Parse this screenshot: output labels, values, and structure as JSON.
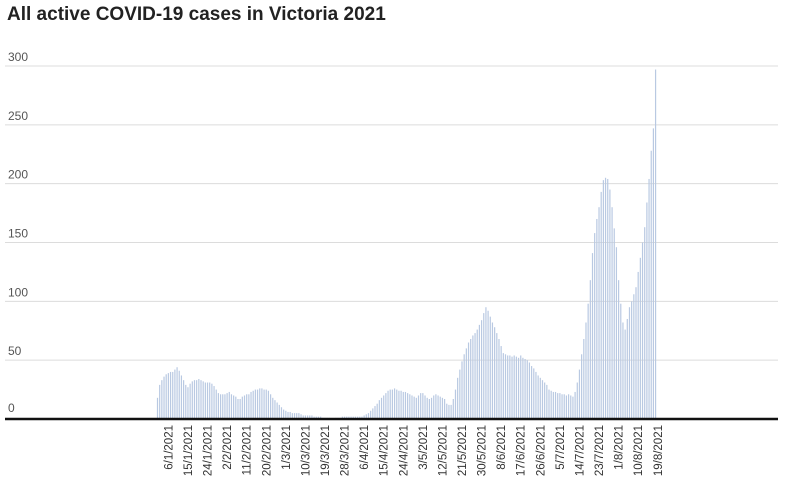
{
  "chart_data": {
    "type": "bar",
    "title": "All active COVID-19 cases in Victoria 2021",
    "xlabel": "",
    "ylabel": "",
    "ylim": [
      0,
      300
    ],
    "yticks": [
      0,
      50,
      100,
      150,
      200,
      250,
      300
    ],
    "grid": true,
    "legend": "none",
    "bar_color": "#b9c9e2",
    "baseline_color": "#111111",
    "gridline_color": "#dcdcdc",
    "start_date": "2021-01-01",
    "x_tick_labels": [
      "6/1/2021",
      "15/1/2021",
      "24/1/2021",
      "2/2/2021",
      "11/2/2021",
      "20/2/2021",
      "1/3/2021",
      "10/3/2021",
      "19/3/2021",
      "28/3/2021",
      "6/4/2021",
      "15/4/2021",
      "24/4/2021",
      "3/5/2021",
      "12/5/2021",
      "21/5/2021",
      "30/5/2021",
      "8/6/2021",
      "17/6/2021",
      "26/6/2021",
      "5/7/2021",
      "14/7/2021",
      "23/7/2021",
      "1/8/2021",
      "10/8/2021",
      "19/8/2021"
    ],
    "values": [
      18,
      29,
      33,
      36,
      38,
      39,
      40,
      40,
      42,
      44,
      41,
      37,
      33,
      29,
      27,
      30,
      32,
      33,
      33,
      34,
      33,
      32,
      31,
      31,
      31,
      30,
      28,
      25,
      22,
      21,
      21,
      21,
      22,
      23,
      21,
      20,
      19,
      17,
      17,
      19,
      20,
      21,
      21,
      23,
      24,
      25,
      25,
      26,
      26,
      25,
      25,
      24,
      21,
      18,
      16,
      14,
      12,
      10,
      8,
      7,
      6,
      6,
      5,
      5,
      5,
      5,
      4,
      3,
      3,
      3,
      3,
      3,
      2,
      2,
      2,
      2,
      1,
      1,
      1,
      1,
      0,
      0,
      1,
      1,
      1,
      2,
      2,
      2,
      2,
      2,
      2,
      2,
      2,
      2,
      2,
      3,
      4,
      5,
      7,
      9,
      11,
      13,
      16,
      18,
      20,
      22,
      24,
      25,
      25,
      26,
      25,
      24,
      24,
      23,
      23,
      22,
      21,
      20,
      19,
      18,
      20,
      22,
      22,
      20,
      18,
      17,
      18,
      20,
      21,
      20,
      19,
      18,
      17,
      13,
      12,
      12,
      17,
      25,
      35,
      42,
      49,
      55,
      60,
      65,
      68,
      71,
      73,
      76,
      80,
      84,
      90,
      95,
      92,
      87,
      82,
      78,
      73,
      68,
      62,
      56,
      55,
      54,
      54,
      53,
      54,
      53,
      52,
      54,
      52,
      51,
      50,
      48,
      45,
      43,
      40,
      37,
      35,
      33,
      31,
      29,
      25,
      24,
      23,
      23,
      22,
      22,
      21,
      21,
      20,
      21,
      20,
      19,
      23,
      31,
      42,
      55,
      68,
      82,
      98,
      118,
      141,
      158,
      170,
      180,
      193,
      203,
      205,
      204,
      195,
      180,
      162,
      146,
      118,
      98,
      82,
      76,
      85,
      95,
      100,
      106,
      112,
      125,
      137,
      150,
      163,
      184,
      204,
      228,
      247,
      297
    ]
  }
}
